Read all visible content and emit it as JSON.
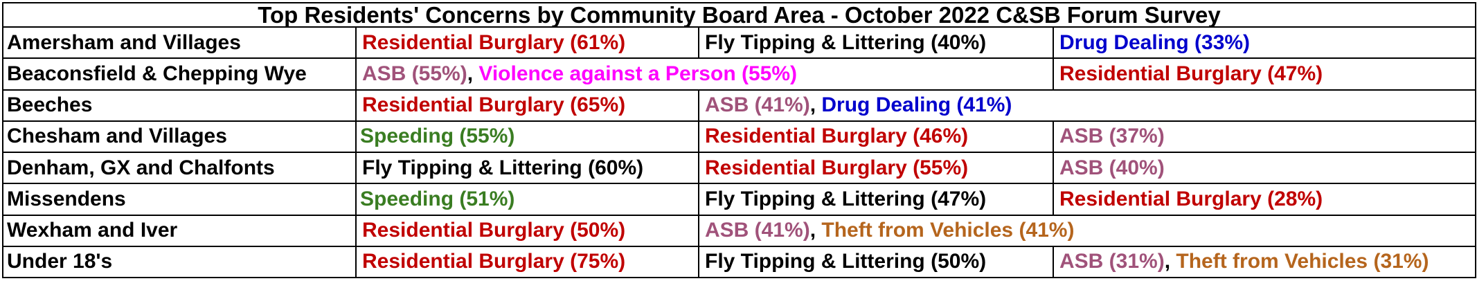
{
  "title": "Top Residents' Concerns by Community Board Area - October 2022 C&SB Forum Survey",
  "colors": {
    "Residential Burglary": "#c00000",
    "Fly Tipping & Littering": "#000000",
    "Drug Dealing": "#0000cc",
    "ASB": "#a0527a",
    "Violence against a Person": "#ff00ff",
    "Speeding": "#3a7d22",
    "Theft from Vehicles": "#b5651d"
  },
  "rows": [
    {
      "area": "Amersham and Villages",
      "cells": [
        {
          "span": 1,
          "items": [
            {
              "text": "Residential Burglary (61%)",
              "category": "Residential Burglary"
            }
          ]
        },
        {
          "span": 1,
          "items": [
            {
              "text": "Fly Tipping & Littering (40%)",
              "category": "Fly Tipping & Littering"
            }
          ]
        },
        {
          "span": 1,
          "items": [
            {
              "text": "Drug Dealing (33%)",
              "category": "Drug Dealing"
            }
          ]
        }
      ]
    },
    {
      "area": "Beaconsfield & Chepping Wye",
      "cells": [
        {
          "span": 2,
          "items": [
            {
              "text": "ASB (55%)",
              "category": "ASB"
            },
            {
              "text": "Violence against a Person (55%)",
              "category": "Violence against a Person"
            }
          ]
        },
        {
          "span": 1,
          "items": [
            {
              "text": "Residential Burglary (47%)",
              "category": "Residential Burglary"
            }
          ]
        }
      ]
    },
    {
      "area": "Beeches",
      "cells": [
        {
          "span": 1,
          "items": [
            {
              "text": "Residential Burglary (65%)",
              "category": "Residential Burglary"
            }
          ]
        },
        {
          "span": 2,
          "items": [
            {
              "text": "ASB (41%)",
              "category": "ASB"
            },
            {
              "text": "Drug Dealing (41%)",
              "category": "Drug Dealing"
            }
          ]
        }
      ]
    },
    {
      "area": "Chesham and Villages",
      "cells": [
        {
          "span": 1,
          "tight": true,
          "items": [
            {
              "text": "Speeding (55%)",
              "category": "Speeding"
            }
          ]
        },
        {
          "span": 1,
          "items": [
            {
              "text": "Residential Burglary (46%)",
              "category": "Residential Burglary"
            }
          ]
        },
        {
          "span": 1,
          "items": [
            {
              "text": "ASB (37%)",
              "category": "ASB"
            }
          ]
        }
      ]
    },
    {
      "area": "Denham, GX and Chalfonts",
      "cells": [
        {
          "span": 1,
          "items": [
            {
              "text": "Fly Tipping & Littering (60%)",
              "category": "Fly Tipping & Littering"
            }
          ]
        },
        {
          "span": 1,
          "items": [
            {
              "text": "Residential Burglary (55%)",
              "category": "Residential Burglary"
            }
          ]
        },
        {
          "span": 1,
          "items": [
            {
              "text": "ASB (40%)",
              "category": "ASB"
            }
          ]
        }
      ]
    },
    {
      "area": "Missendens",
      "cells": [
        {
          "span": 1,
          "tight": true,
          "items": [
            {
              "text": "Speeding (51%)",
              "category": "Speeding"
            }
          ]
        },
        {
          "span": 1,
          "items": [
            {
              "text": "Fly Tipping & Littering (47%)",
              "category": "Fly Tipping & Littering"
            }
          ]
        },
        {
          "span": 1,
          "items": [
            {
              "text": "Residential Burglary (28%)",
              "category": "Residential Burglary"
            }
          ]
        }
      ]
    },
    {
      "area": "Wexham and Iver",
      "cells": [
        {
          "span": 1,
          "items": [
            {
              "text": "Residential Burglary (50%)",
              "category": "Residential Burglary"
            }
          ]
        },
        {
          "span": 2,
          "items": [
            {
              "text": "ASB (41%)",
              "category": "ASB"
            },
            {
              "text": "Theft from Vehicles (41%)",
              "category": "Theft from Vehicles"
            }
          ]
        }
      ]
    },
    {
      "area": "Under 18's",
      "cells": [
        {
          "span": 1,
          "items": [
            {
              "text": "Residential Burglary (75%)",
              "category": "Residential Burglary"
            }
          ]
        },
        {
          "span": 1,
          "items": [
            {
              "text": "Fly Tipping & Littering (50%)",
              "category": "Fly Tipping & Littering"
            }
          ]
        },
        {
          "span": 1,
          "items": [
            {
              "text": "ASB (31%)",
              "category": "ASB"
            },
            {
              "text": "Theft from Vehicles (31%)",
              "category": "Theft from Vehicles"
            }
          ]
        }
      ]
    }
  ]
}
